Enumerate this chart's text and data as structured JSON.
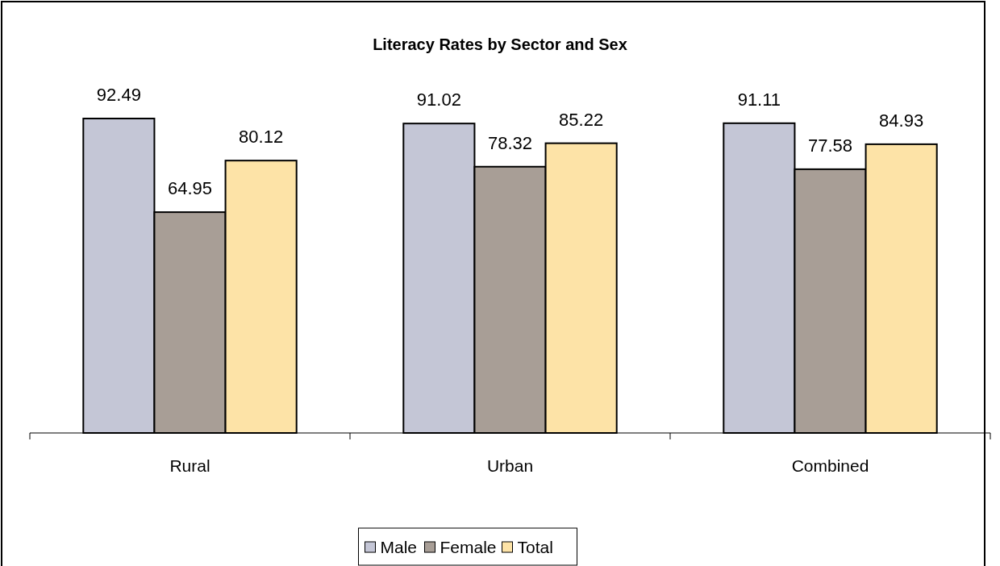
{
  "chart_data": {
    "type": "bar",
    "title": "Literacy Rates by Sector and Sex",
    "categories": [
      "Rural",
      "Urban",
      "Combined"
    ],
    "series": [
      {
        "name": "Male",
        "color": "#c4c6d6",
        "values": [
          92.49,
          91.02,
          91.11
        ]
      },
      {
        "name": "Female",
        "color": "#a89e96",
        "values": [
          64.95,
          78.32,
          77.58
        ]
      },
      {
        "name": "Total",
        "color": "#fde3a7",
        "values": [
          80.12,
          85.22,
          84.93
        ]
      }
    ],
    "data_labels": true,
    "legend": "bottom"
  }
}
